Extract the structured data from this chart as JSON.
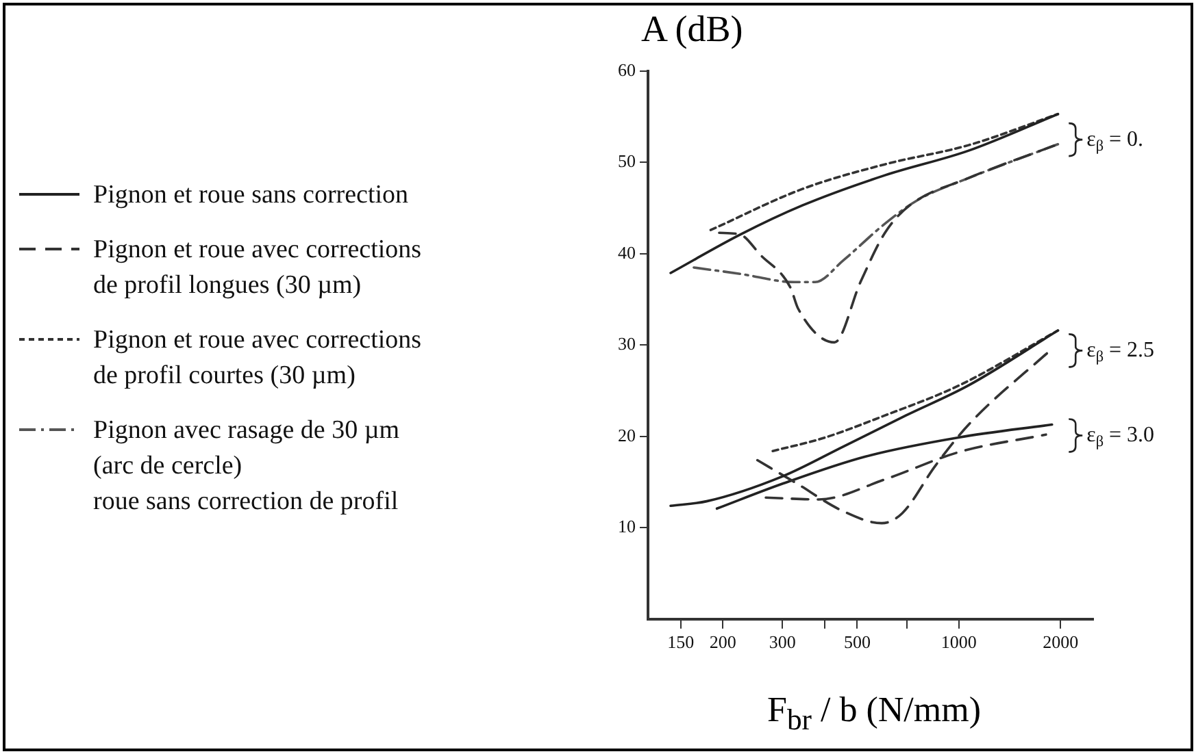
{
  "chart_data": {
    "type": "line",
    "ylabel": "A (dB)",
    "xlabel": "F$_{br}$ / b  (N/mm)",
    "log": "x",
    "grid": false,
    "legend": "left",
    "marker": "none",
    "xlim": [
      120,
      2500
    ],
    "xticks": [
      150,
      200,
      300,
      {
        "value": 400,
        "label": null
      },
      500,
      {
        "value": 700,
        "label": null
      },
      1000,
      2000
    ],
    "ylim": [
      0,
      60
    ],
    "yticks": [
      10,
      20,
      30,
      40,
      50,
      60
    ],
    "series": [
      {
        "name": "Pignon et roue sans correction",
        "color": "#222222",
        "line_style": "solid",
        "x": [
          140,
          225,
          344,
          604,
          1069,
          1965
        ],
        "values": [
          37.9,
          42.1,
          45.3,
          48.6,
          51.3,
          55.3
        ]
      },
      {
        "name": "Pignon et roue avec corrections\nde profil longues (30 µm)",
        "color": "#333333",
        "line_style": "dashed",
        "x": [
          195,
          225,
          258,
          317,
          334,
          428,
          511,
          604,
          715,
          1069,
          1965
        ],
        "values": [
          42.3,
          42.1,
          39.9,
          36.3,
          34.0,
          30.3,
          36.9,
          42.3,
          45.3,
          48.3,
          52.0
        ]
      },
      {
        "name": "Pignon et roue avec corrections\nde profil courtes (30 µm)",
        "color": "#333333",
        "line_style": "dotted",
        "x": [
          184,
          344,
          604,
          1069,
          1965
        ],
        "values": [
          42.6,
          47.1,
          49.8,
          51.9,
          55.3
        ]
      },
      {
        "name": "Pignon avec rasage de 30 µm\n(arc de cercle)\nroue sans correction de profil",
        "color": "#555555",
        "line_style": "dashdot",
        "x": [
          164,
          225,
          326,
          375,
          455,
          604,
          756,
          1069,
          1965
        ],
        "values": [
          38.5,
          37.8,
          36.9,
          36.9,
          39.3,
          43.3,
          45.9,
          48.3,
          52.0
        ]
      },
      {
        "color": "#222222",
        "line_style": "solid",
        "x": [
          140,
          179,
          299,
          455,
          697,
          1069,
          1965
        ],
        "values": [
          12.4,
          12.9,
          15.6,
          18.9,
          22.3,
          25.6,
          31.6
        ]
      },
      {
        "color": "#333333",
        "line_style": "dotted",
        "x": [
          281,
          395,
          604,
          1003,
          1965
        ],
        "values": [
          18.4,
          19.8,
          22.3,
          25.6,
          31.6
        ]
      },
      {
        "color": "#333333",
        "line_style": "dashed",
        "x": [
          253,
          326,
          455,
          591,
          680,
          852,
          1069,
          1887
        ],
        "values": [
          17.4,
          15.0,
          11.8,
          10.5,
          11.6,
          16.8,
          21.3,
          29.6
        ]
      },
      {
        "color": "#222222",
        "line_style": "solid",
        "x": [
          192,
          299,
          529,
          1003,
          1887
        ],
        "values": [
          12.1,
          14.8,
          17.8,
          19.9,
          21.3
        ]
      },
      {
        "color": "#333333",
        "line_style": "dashed",
        "x": [
          268,
          385,
          604,
          1003,
          1810
        ],
        "values": [
          13.3,
          13.1,
          15.3,
          18.3,
          20.2
        ]
      }
    ],
    "annotations": [
      "ε$_{β}$ = 0.",
      "ε$_{β}$ = 2.5",
      "ε$_{β}$ = 3.0"
    ]
  }
}
